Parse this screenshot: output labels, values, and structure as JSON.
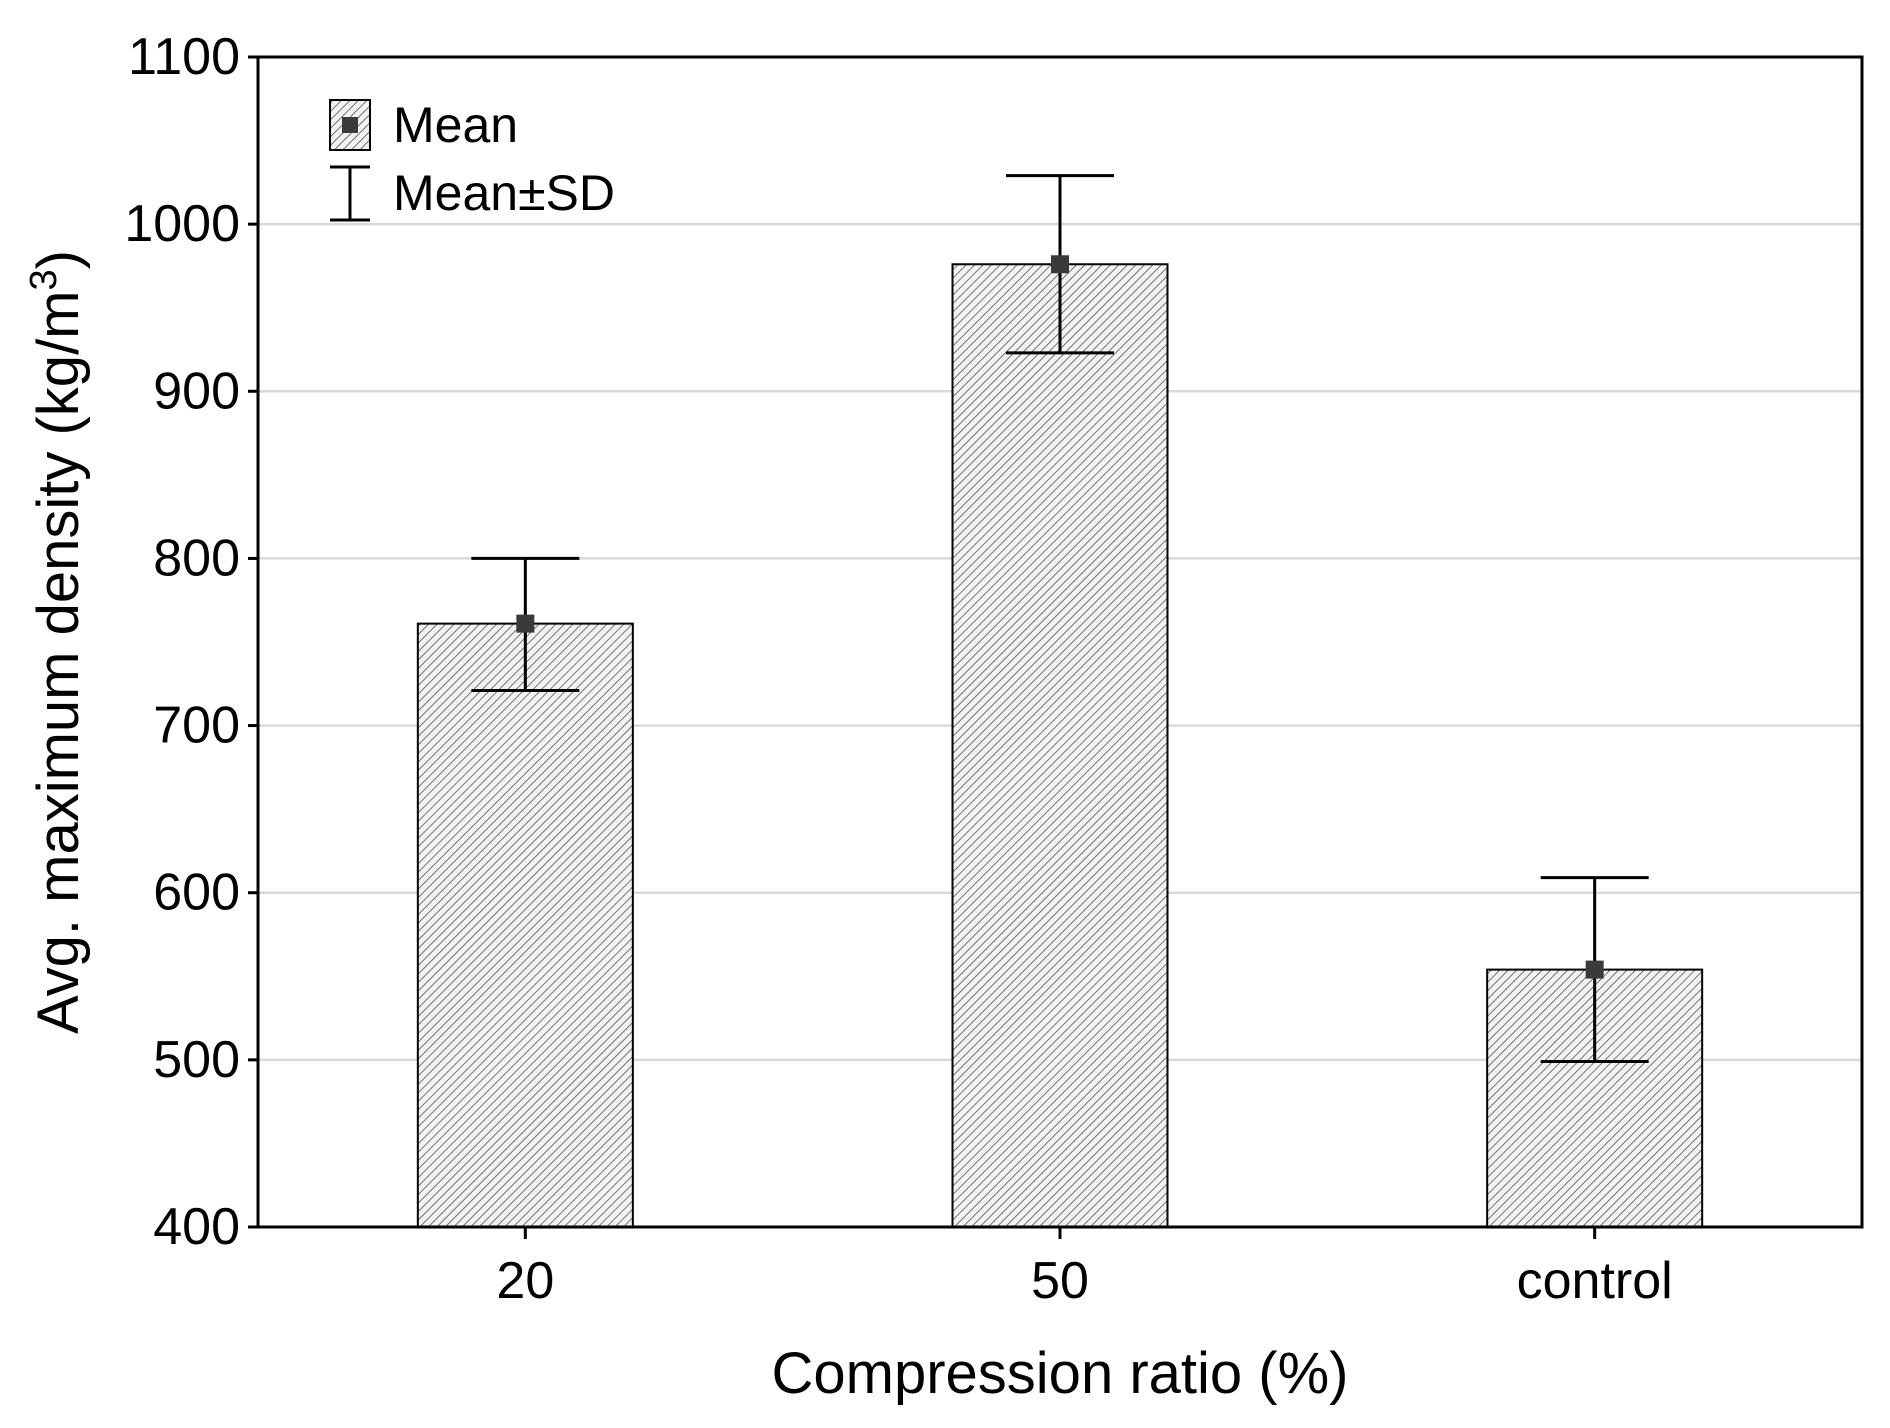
{
  "chart_data": {
    "type": "bar",
    "title": "",
    "xlabel": "Compression ratio (%)",
    "ylabel_main": "Avg. maximum density (kg/m",
    "ylabel_sup": "3",
    "ylabel_close": ")",
    "categories": [
      "20",
      "50",
      "control"
    ],
    "values": [
      761,
      976,
      554
    ],
    "sd_upper": [
      800,
      1029,
      609
    ],
    "sd_lower": [
      721,
      923,
      499
    ],
    "ylim": [
      400,
      1100
    ],
    "yticks": [
      400,
      500,
      600,
      700,
      800,
      900,
      1000,
      1100
    ],
    "grid": true,
    "legend": {
      "placement": "top-left",
      "mean_label": "Mean",
      "sd_label": "Mean±SD"
    },
    "colors": {
      "bar_fill": "#f2f2f2",
      "hatch": "#555555",
      "outline": "#000000",
      "grid": "#d9d9d9",
      "marker": "#3a3a3a"
    }
  }
}
